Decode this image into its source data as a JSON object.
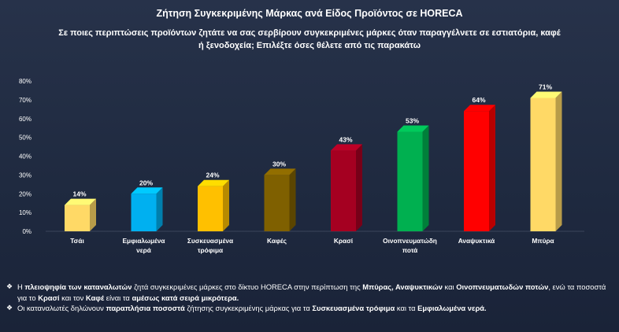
{
  "chart_data": {
    "type": "bar",
    "title": "Ζήτηση Συγκεκριμένης Μάρκας ανά Είδος Προϊόντος σε HORECA",
    "subtitle": "Σε ποιες περιπτώσεις προϊόντων ζητάτε να σας σερβίρουν συγκεκριμένες μάρκες όταν παραγγέλνετε σε εστιατόρια, καφέ ή ξενοδοχεία; Επιλέξτε όσες θέλετε από τις παρακάτω",
    "categories": [
      "Τσάι",
      "Εμφιαλωμένα νερά",
      "Συσκευασμένα τρόφιμα",
      "Καφές",
      "Κρασί",
      "Οινοπνευματώδη ποτά",
      "Αναψυκτικά",
      "Μπύρα"
    ],
    "category_lines": [
      [
        "Τσάι"
      ],
      [
        "Εμφιαλωμένα",
        "νερά"
      ],
      [
        "Συσκευασμένα",
        "τρόφιμα"
      ],
      [
        "Καφές"
      ],
      [
        "Κρασί"
      ],
      [
        "Οινοπνευματώδη",
        "ποτά"
      ],
      [
        "Αναψυκτικά"
      ],
      [
        "Μπύρα"
      ]
    ],
    "values": [
      14,
      20,
      24,
      30,
      43,
      53,
      64,
      71
    ],
    "value_labels": [
      "14%",
      "20%",
      "24%",
      "30%",
      "43%",
      "53%",
      "64%",
      "71%"
    ],
    "colors": [
      "#ffd966",
      "#00b0f0",
      "#ffc000",
      "#7f6000",
      "#a50021",
      "#00b050",
      "#ff0000",
      "#ffd966"
    ],
    "ylim": [
      0,
      80
    ],
    "yticks": [
      0,
      10,
      20,
      30,
      40,
      50,
      60,
      70,
      80
    ],
    "ytick_labels": [
      "0%",
      "10%",
      "20%",
      "30%",
      "40%",
      "50%",
      "60%",
      "70%",
      "80%"
    ],
    "grid": false,
    "legend": "none"
  },
  "bullets": [
    {
      "icon": "diamond-bullet-icon",
      "parts": [
        {
          "t": "Η ",
          "b": false
        },
        {
          "t": "πλειοψηφία των καταναλωτών",
          "b": true
        },
        {
          "t": " ζητά συγκεκριμένες μάρκες στο δίκτυο HORECA στην περίπτωση της ",
          "b": false
        },
        {
          "t": "Μπύρας, Αναψυκτικών",
          "b": true
        },
        {
          "t": " και ",
          "b": false
        },
        {
          "t": "Οινοπνευματωδών ποτών",
          "b": true
        },
        {
          "t": ", ενώ τα ποσοστά για το ",
          "b": false
        },
        {
          "t": "Κρασί",
          "b": true
        },
        {
          "t": " και τον ",
          "b": false
        },
        {
          "t": "Καφέ",
          "b": true
        },
        {
          "t": " είναι τα ",
          "b": false
        },
        {
          "t": "αμέσως κατά σειρά μικρότερα.",
          "b": true
        }
      ]
    },
    {
      "icon": "diamond-bullet-icon",
      "parts": [
        {
          "t": "Οι καταναλωτές δηλώνουν ",
          "b": false
        },
        {
          "t": "παραπλήσια ποσοστά",
          "b": true
        },
        {
          "t": " ζήτησης συγκεκριμένης μάρκας για τα ",
          "b": false
        },
        {
          "t": "Συσκευασμένα τρόφιμα",
          "b": true
        },
        {
          "t": " και τα ",
          "b": false
        },
        {
          "t": "Εμφιαλωμένα νερά.",
          "b": true
        }
      ]
    }
  ]
}
